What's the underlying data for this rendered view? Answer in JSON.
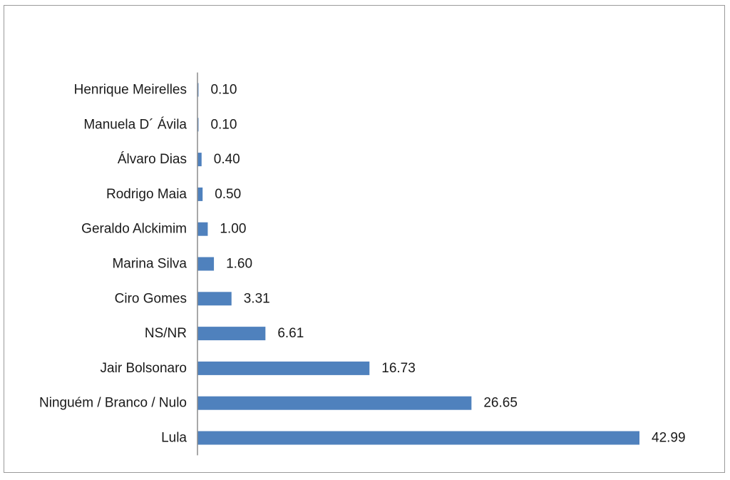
{
  "chart_data": {
    "type": "bar",
    "orientation": "horizontal",
    "title": "",
    "xlabel": "",
    "ylabel": "",
    "categories": [
      "Henrique Meirelles",
      "Manuela D´ Ávila",
      "Álvaro Dias",
      "Rodrigo Maia",
      "Geraldo Alckimim",
      "Marina Silva",
      "Ciro Gomes",
      "NS/NR",
      "Jair Bolsonaro",
      "Ninguém / Branco / Nulo",
      "Lula"
    ],
    "values": [
      0.1,
      0.1,
      0.4,
      0.5,
      1.0,
      1.6,
      3.31,
      6.61,
      16.73,
      26.65,
      42.99
    ],
    "value_labels": [
      "0.10",
      "0.10",
      "0.40",
      "0.50",
      "1.00",
      "1.60",
      "3.31",
      "6.61",
      "16.73",
      "26.65",
      "42.99"
    ],
    "xlim": [
      0,
      43
    ],
    "grid": false,
    "legend": "none",
    "bar_color": "#4f81bd"
  }
}
